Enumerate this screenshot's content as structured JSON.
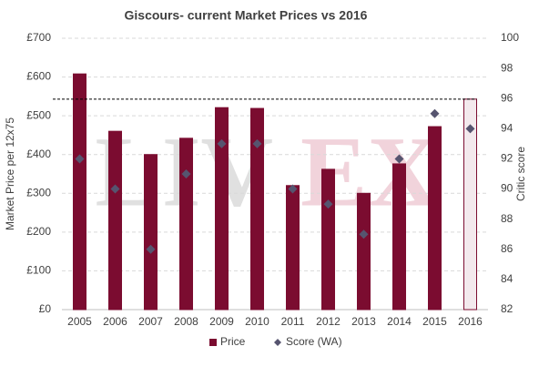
{
  "chart_data": {
    "type": "bar_scatter",
    "title": "Giscours- current Market Prices vs 2016",
    "categories": [
      "2005",
      "2006",
      "2007",
      "2008",
      "2009",
      "2010",
      "2011",
      "2012",
      "2013",
      "2014",
      "2015",
      "2016"
    ],
    "series": [
      {
        "name": "Price",
        "type": "bar",
        "color": "#7b0c30",
        "fills": [
          "#7b0c30",
          "#7b0c30",
          "#7b0c30",
          "#7b0c30",
          "#7b0c30",
          "#7b0c30",
          "#7b0c30",
          "#7b0c30",
          "#7b0c30",
          "#7b0c30",
          "#7b0c30",
          "#f3e9ed"
        ],
        "values": [
          608,
          460,
          400,
          442,
          521,
          519,
          320,
          362,
          300,
          376,
          472,
          543
        ]
      },
      {
        "name": "Score (WA)",
        "type": "scatter",
        "axis": "y2",
        "color": "#56546f",
        "values": [
          92,
          90,
          86,
          91,
          93,
          93,
          90,
          89,
          87,
          92,
          95,
          94
        ]
      }
    ],
    "y_label": "Market Price per 12x75",
    "y2_label": "Critic score",
    "ylim": [
      0,
      700
    ],
    "yticks": [
      {
        "value": 0,
        "label": "£0"
      },
      {
        "value": 100,
        "label": "£100"
      },
      {
        "value": 200,
        "label": "£200"
      },
      {
        "value": 300,
        "label": "£300"
      },
      {
        "value": 400,
        "label": "£400"
      },
      {
        "value": 500,
        "label": "£500"
      },
      {
        "value": 600,
        "label": "£600"
      },
      {
        "value": 700,
        "label": "£700"
      }
    ],
    "y2lim": [
      82,
      100
    ],
    "y2ticks": [
      82,
      84,
      86,
      88,
      90,
      92,
      94,
      96,
      98,
      100
    ],
    "grid": true,
    "watermark": [
      "LIV",
      "EX"
    ],
    "reference_line": true
  }
}
